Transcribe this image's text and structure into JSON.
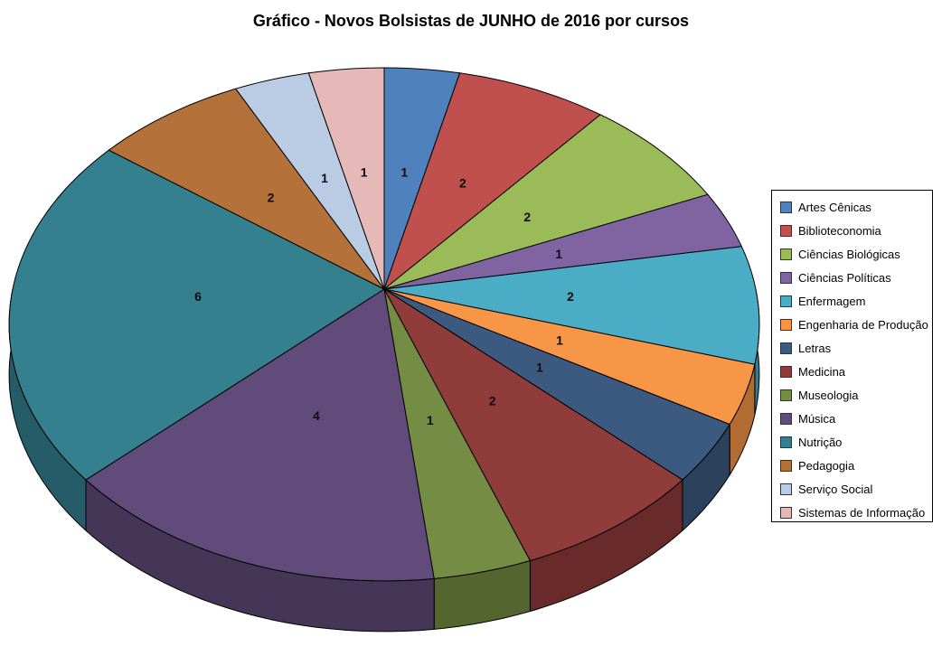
{
  "chart_data": {
    "type": "pie",
    "style": "3d-pie",
    "title": "Gráfico - Novos Bolsistas de JUNHO de 2016 por cursos",
    "data_labels": "value",
    "legend_position": "right",
    "categories": [
      "Artes Cênicas",
      "Biblioteconomia",
      "Ciências Biológicas",
      "Ciências Políticas",
      "Enfermagem",
      "Engenharia de Produção",
      "Letras",
      "Medicina",
      "Museologia",
      "Música",
      "Nutrição",
      "Pedagogia",
      "Serviço Social",
      "Sistemas de Informação"
    ],
    "values": [
      1,
      2,
      2,
      1,
      2,
      1,
      1,
      2,
      1,
      4,
      6,
      2,
      1,
      1
    ],
    "colors": [
      "#4F81BD",
      "#C0504D",
      "#9BBB59",
      "#8064A2",
      "#4BACC6",
      "#F79646",
      "#3C5A80",
      "#903C3A",
      "#748C43",
      "#604B7A",
      "#35808F",
      "#B4713A",
      "#B9CCE4",
      "#E5B9B7"
    ],
    "start_angle_deg": 0,
    "direction": "clockwise",
    "background": "#FFFFFF"
  }
}
